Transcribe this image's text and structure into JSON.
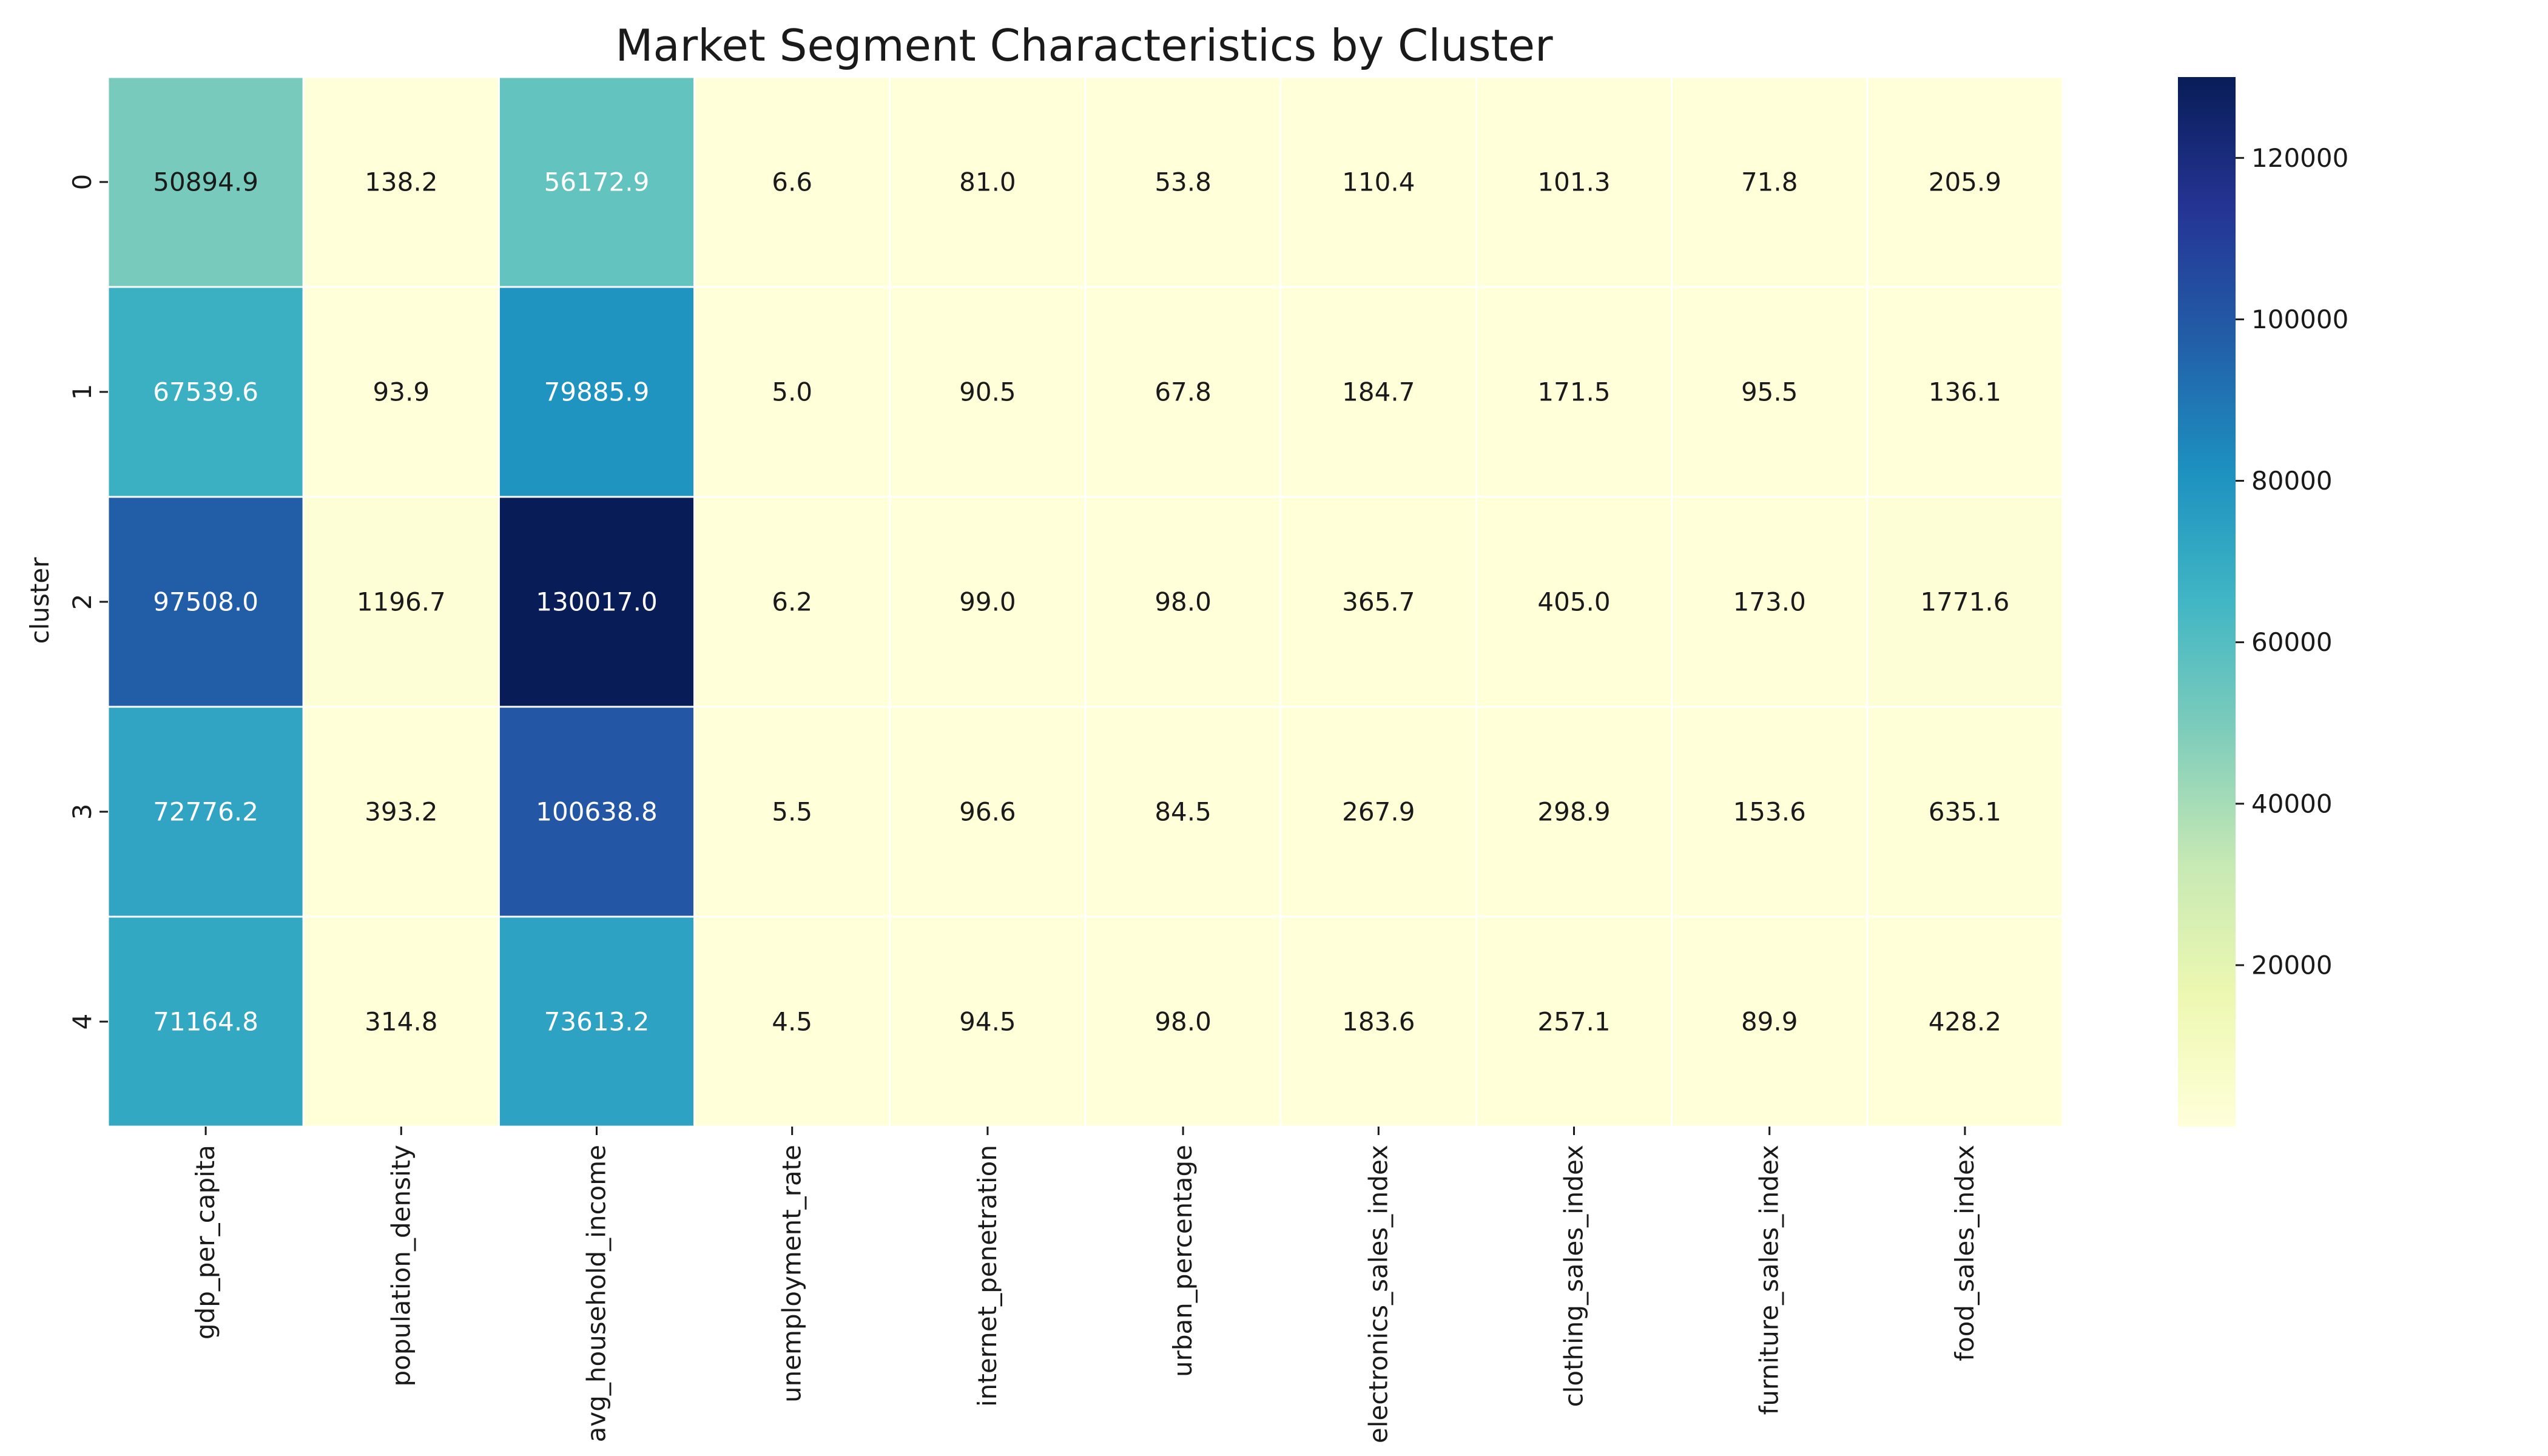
{
  "chart_data": {
    "type": "heatmap",
    "title": "Market Segment Characteristics by Cluster",
    "ylabel": "cluster",
    "xlabel": "",
    "x_categories": [
      "gdp_per_capita",
      "population_density",
      "avg_household_income",
      "unemployment_rate",
      "internet_penetration",
      "urban_percentage",
      "electronics_sales_index",
      "clothing_sales_index",
      "furniture_sales_index",
      "food_sales_index"
    ],
    "y_categories": [
      "0",
      "1",
      "2",
      "3",
      "4"
    ],
    "values": [
      [
        50894.9,
        138.2,
        56172.9,
        6.6,
        81.0,
        53.8,
        110.4,
        101.3,
        71.8,
        205.9
      ],
      [
        67539.6,
        93.9,
        79885.9,
        5.0,
        90.5,
        67.8,
        184.7,
        171.5,
        95.5,
        136.1
      ],
      [
        97508.0,
        1196.7,
        130017.0,
        6.2,
        99.0,
        98.0,
        365.7,
        405.0,
        173.0,
        1771.6
      ],
      [
        72776.2,
        393.2,
        100638.8,
        5.5,
        96.6,
        84.5,
        267.9,
        298.9,
        153.6,
        635.1
      ],
      [
        71164.8,
        314.8,
        73613.2,
        4.5,
        94.5,
        98.0,
        183.6,
        257.1,
        89.9,
        428.2
      ]
    ],
    "colorscale": "YlGnBu",
    "colorbar": {
      "min": 4.5,
      "max": 130017.0,
      "ticks": [
        20000,
        40000,
        60000,
        80000,
        100000,
        120000
      ]
    },
    "grid": false
  }
}
